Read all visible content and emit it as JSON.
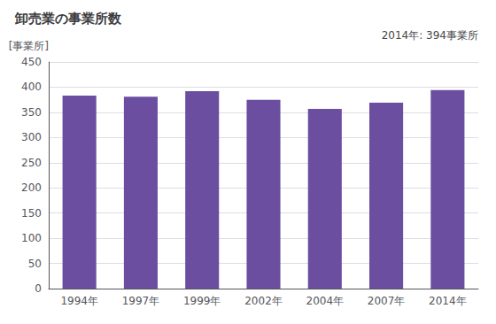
{
  "chart_data": {
    "type": "bar",
    "title": "卸売業の事業所数",
    "ylabel": "[事業所]",
    "annotation": "2014年: 394事業所",
    "categories": [
      "1994年",
      "1997年",
      "1999年",
      "2002年",
      "2004年",
      "2007年",
      "2014年"
    ],
    "values": [
      383,
      381,
      392,
      375,
      357,
      369,
      394
    ],
    "color": "#6b4ea0",
    "ylim": [
      0,
      450
    ],
    "yticks": [
      0,
      50,
      100,
      150,
      200,
      250,
      300,
      350,
      400,
      450
    ],
    "grid": true
  }
}
